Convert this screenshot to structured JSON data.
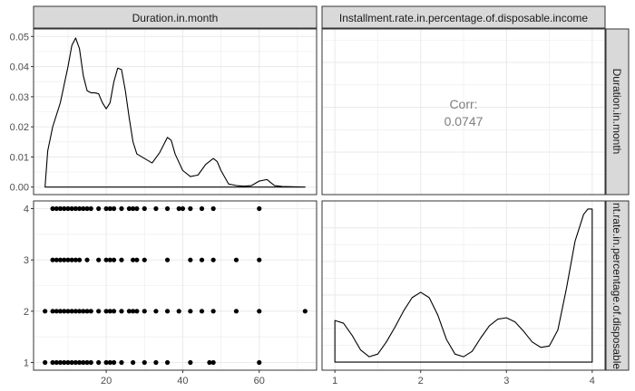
{
  "chart_data": {
    "type": "pairs-matrix",
    "strip_top": [
      "Duration.in.month",
      "Installment.rate.in.percentage.of.disposable.income"
    ],
    "strip_right": [
      "Duration.in.month",
      "Installment.rate.in.percentage.of.disposable.income"
    ],
    "right_strip_display": [
      "Duration.in.month",
      "nt.rate.in.percentage.of.disposable"
    ],
    "density_duration": {
      "type": "line",
      "x": [
        4,
        4.7,
        6,
        8,
        10,
        11,
        12,
        13,
        14,
        15,
        16,
        17,
        18,
        19,
        20,
        21,
        22,
        23,
        24,
        25,
        26,
        27,
        28,
        30,
        32,
        34,
        36,
        37,
        38,
        40,
        42,
        44,
        46,
        48,
        49,
        50,
        52,
        54,
        56,
        58,
        60,
        62,
        64,
        66,
        72
      ],
      "y": [
        0.0,
        0.012,
        0.02,
        0.028,
        0.04,
        0.047,
        0.0495,
        0.046,
        0.037,
        0.032,
        0.0313,
        0.0313,
        0.031,
        0.028,
        0.026,
        0.028,
        0.035,
        0.0395,
        0.039,
        0.032,
        0.023,
        0.015,
        0.011,
        0.0095,
        0.008,
        0.0115,
        0.0165,
        0.0155,
        0.011,
        0.0055,
        0.0035,
        0.004,
        0.0075,
        0.0095,
        0.0085,
        0.0055,
        0.001,
        0.0005,
        0.0003,
        0.0005,
        0.002,
        0.0025,
        0.0005,
        0.0002,
        0.0
      ],
      "xlim": [
        1,
        75
      ],
      "ylim": [
        -0.0025,
        0.0525
      ],
      "yticks": [
        0.0,
        0.01,
        0.02,
        0.03,
        0.04,
        0.05
      ],
      "ytick_labels": [
        "0.00",
        "0.01",
        "0.02",
        "0.03",
        "0.04",
        "0.05"
      ]
    },
    "correlation": {
      "label": "Corr:",
      "value": "0.0747"
    },
    "scatter": {
      "type": "scatter",
      "x_values_by_rate": {
        "4": [
          6,
          7,
          8,
          9,
          10,
          11,
          12,
          13,
          14,
          15,
          16,
          18,
          20,
          21,
          22,
          24,
          26,
          27,
          28,
          30,
          33,
          36,
          39,
          40,
          42,
          45,
          48,
          60
        ],
        "3": [
          6,
          7,
          8,
          9,
          10,
          11,
          12,
          13,
          15,
          18,
          20,
          21,
          22,
          24,
          27,
          28,
          30,
          36,
          42,
          45,
          48,
          54,
          60
        ],
        "2": [
          4,
          6,
          7,
          8,
          9,
          10,
          11,
          12,
          13,
          14,
          15,
          16,
          18,
          20,
          21,
          22,
          24,
          26,
          27,
          28,
          30,
          33,
          36,
          39,
          42,
          45,
          48,
          54,
          60,
          72
        ],
        "1": [
          4,
          6,
          7,
          8,
          9,
          10,
          11,
          12,
          13,
          14,
          15,
          16,
          18,
          20,
          21,
          22,
          24,
          27,
          30,
          33,
          36,
          42,
          47,
          48,
          60
        ]
      },
      "xlim": [
        1,
        75
      ],
      "ylim": [
        0.85,
        4.15
      ],
      "xticks": [
        20,
        40,
        60
      ],
      "xtick_labels": [
        "20",
        "40",
        "60"
      ],
      "yticks": [
        1,
        2,
        3,
        4
      ],
      "ytick_labels": [
        "1",
        "2",
        "3",
        "4"
      ]
    },
    "density_rate": {
      "type": "line",
      "x": [
        1,
        1.1,
        1.2,
        1.3,
        1.4,
        1.5,
        1.6,
        1.7,
        1.8,
        1.9,
        2.0,
        2.1,
        2.2,
        2.3,
        2.4,
        2.5,
        2.6,
        2.7,
        2.8,
        2.9,
        3.0,
        3.1,
        3.2,
        3.3,
        3.4,
        3.5,
        3.6,
        3.7,
        3.8,
        3.9,
        3.95,
        4.0
      ],
      "y": [
        0.31,
        0.29,
        0.2,
        0.09,
        0.04,
        0.06,
        0.15,
        0.26,
        0.38,
        0.48,
        0.52,
        0.48,
        0.35,
        0.17,
        0.06,
        0.04,
        0.08,
        0.18,
        0.27,
        0.32,
        0.33,
        0.3,
        0.23,
        0.15,
        0.11,
        0.12,
        0.24,
        0.55,
        0.9,
        1.1,
        1.14,
        1.14
      ],
      "xlim": [
        0.85,
        4.15
      ],
      "ylim": [
        -0.06,
        1.2
      ],
      "xticks": [
        1,
        2,
        3,
        4
      ],
      "xtick_labels": [
        "1",
        "2",
        "3",
        "4"
      ]
    },
    "grid": true,
    "colors": {
      "line": "#000000",
      "grid": "#ebebeb",
      "strip_fill": "#d9d9d9",
      "frame": "#333333",
      "corr_text": "#7f7f7f"
    }
  }
}
